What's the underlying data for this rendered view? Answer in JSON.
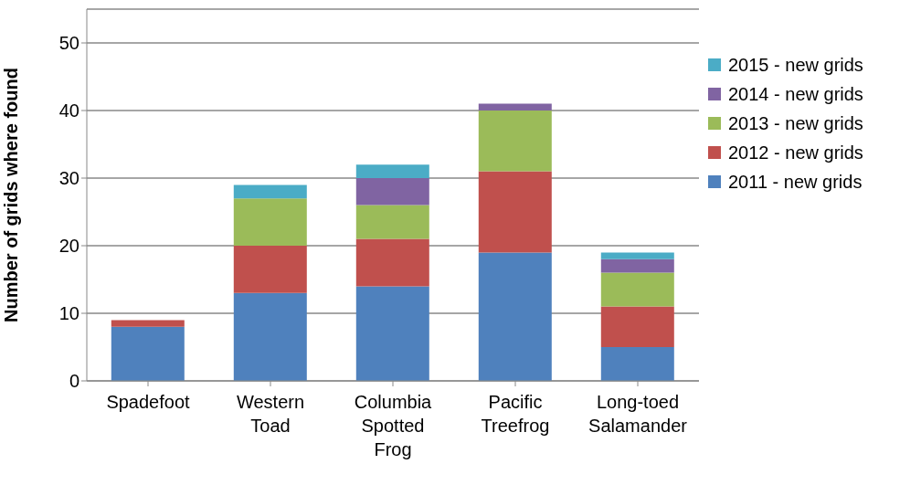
{
  "chart_data": {
    "type": "bar",
    "stacked": true,
    "ylabel": "Number of grids where found",
    "categories": [
      "Spadefoot",
      "Western Toad",
      "Columbia Spotted Frog",
      "Pacific Treefrog",
      "Long-toed Salamander"
    ],
    "series": [
      {
        "name": "2011 - new grids",
        "color": "#4f81bd",
        "values": [
          8,
          13,
          14,
          19,
          5
        ]
      },
      {
        "name": "2012 - new grids",
        "color": "#c0504d",
        "values": [
          1,
          7,
          7,
          12,
          6
        ]
      },
      {
        "name": "2013 - new grids",
        "color": "#9bbb59",
        "values": [
          0,
          7,
          5,
          9,
          5
        ]
      },
      {
        "name": "2014 - new grids",
        "color": "#8064a2",
        "values": [
          0,
          0,
          4,
          1,
          2
        ]
      },
      {
        "name": "2015 - new grids",
        "color": "#4bacc6",
        "values": [
          0,
          2,
          2,
          0,
          1
        ]
      }
    ],
    "ylim": [
      0,
      55
    ],
    "yticks": [
      0,
      10,
      20,
      30,
      40,
      50
    ],
    "grid": "y",
    "legend": "right"
  }
}
